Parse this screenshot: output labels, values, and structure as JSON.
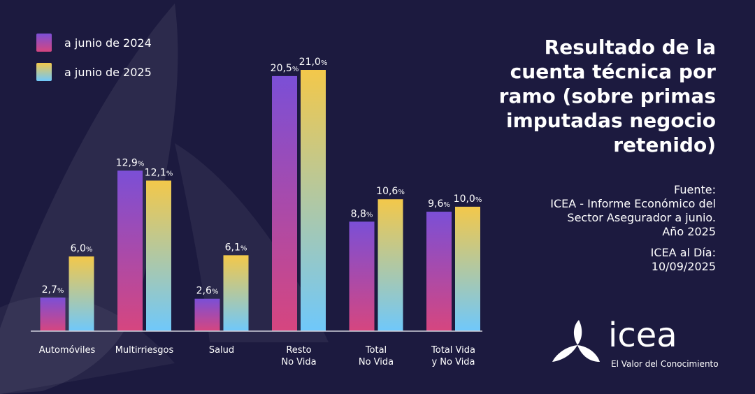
{
  "chart_data": {
    "type": "bar",
    "title": "Resultado de la cuenta técnica por ramo (sobre primas imputadas negocio retenido)",
    "title_lines": [
      "Resultado de la",
      "cuenta técnica por",
      "ramo (sobre primas",
      "imputadas negocio",
      "retenido)"
    ],
    "categories": [
      "Automóviles",
      "Multirriesgos",
      "Salud",
      "Resto No Vida",
      "Total No Vida",
      "Total Vida y No Vida"
    ],
    "category_lines": [
      [
        "Automóviles"
      ],
      [
        "Multirriesgos"
      ],
      [
        "Salud"
      ],
      [
        "Resto",
        "No Vida"
      ],
      [
        "Total",
        "No Vida"
      ],
      [
        "Total Vida",
        "y No Vida"
      ]
    ],
    "series": [
      {
        "name": "a junio de 2024",
        "values": [
          2.7,
          12.9,
          2.6,
          20.5,
          8.8,
          9.6
        ],
        "labels": [
          "2,7",
          "12,9",
          "2,6",
          "20,5",
          "8,8",
          "9,6"
        ]
      },
      {
        "name": "a junio de 2025",
        "values": [
          6.0,
          12.1,
          6.1,
          21.0,
          10.6,
          10.0
        ],
        "labels": [
          "6,0",
          "12,1",
          "6,1",
          "21,0",
          "10,6",
          "10,0"
        ]
      }
    ],
    "unit": "%",
    "ylim": [
      0,
      21.0
    ],
    "grid": false,
    "legend_position": "top-left"
  },
  "colors": {
    "background": "#1c1a3f",
    "series_2024_top": "#7b4fd6",
    "series_2024_bottom": "#d6467f",
    "series_2025_top": "#f3c84a",
    "series_2025_bottom": "#6fc8fb"
  },
  "source": {
    "lines": [
      "Fuente:",
      "ICEA - Informe Económico del",
      "Sector Asegurador a junio.",
      "Año 2025"
    ],
    "date_lines": [
      "ICEA al Día:",
      "10/09/2025"
    ]
  },
  "logo": {
    "icon": "icea-propeller-logo",
    "word": "icea",
    "tagline": "El Valor del Conocimiento"
  }
}
